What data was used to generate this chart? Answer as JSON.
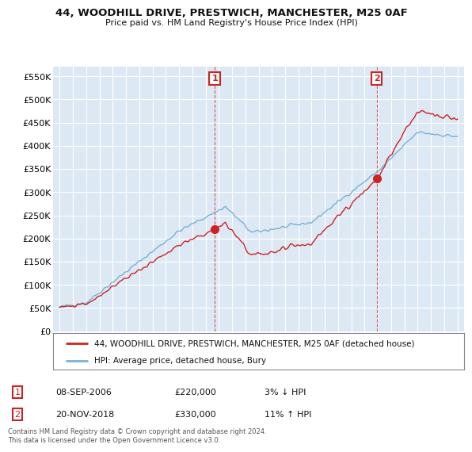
{
  "title": "44, WOODHILL DRIVE, PRESTWICH, MANCHESTER, M25 0AF",
  "subtitle": "Price paid vs. HM Land Registry's House Price Index (HPI)",
  "ylabel_ticks": [
    "£0",
    "£50K",
    "£100K",
    "£150K",
    "£200K",
    "£250K",
    "£300K",
    "£350K",
    "£400K",
    "£450K",
    "£500K",
    "£550K"
  ],
  "ytick_values": [
    0,
    50000,
    100000,
    150000,
    200000,
    250000,
    300000,
    350000,
    400000,
    450000,
    500000,
    550000
  ],
  "ylim": [
    0,
    570000
  ],
  "background_color": "#dce9f5",
  "plot_bg": "#dce9f5",
  "grid_color": "#ffffff",
  "hpi_color": "#7ab0d4",
  "price_color": "#cc2222",
  "sale1_x": 2006.69,
  "sale1_y": 220000,
  "sale2_x": 2018.9,
  "sale2_y": 330000,
  "sale1_label": "1",
  "sale2_label": "2",
  "legend_price_label": "44, WOODHILL DRIVE, PRESTWICH, MANCHESTER, M25 0AF (detached house)",
  "legend_hpi_label": "HPI: Average price, detached house, Bury",
  "table_rows": [
    {
      "num": "1",
      "date": "08-SEP-2006",
      "price": "£220,000",
      "hpi": "3% ↓ HPI"
    },
    {
      "num": "2",
      "date": "20-NOV-2018",
      "price": "£330,000",
      "hpi": "11% ↑ HPI"
    }
  ],
  "footnote": "Contains HM Land Registry data © Crown copyright and database right 2024.\nThis data is licensed under the Open Government Licence v3.0.",
  "xmin": 1994.5,
  "xmax": 2025.5
}
